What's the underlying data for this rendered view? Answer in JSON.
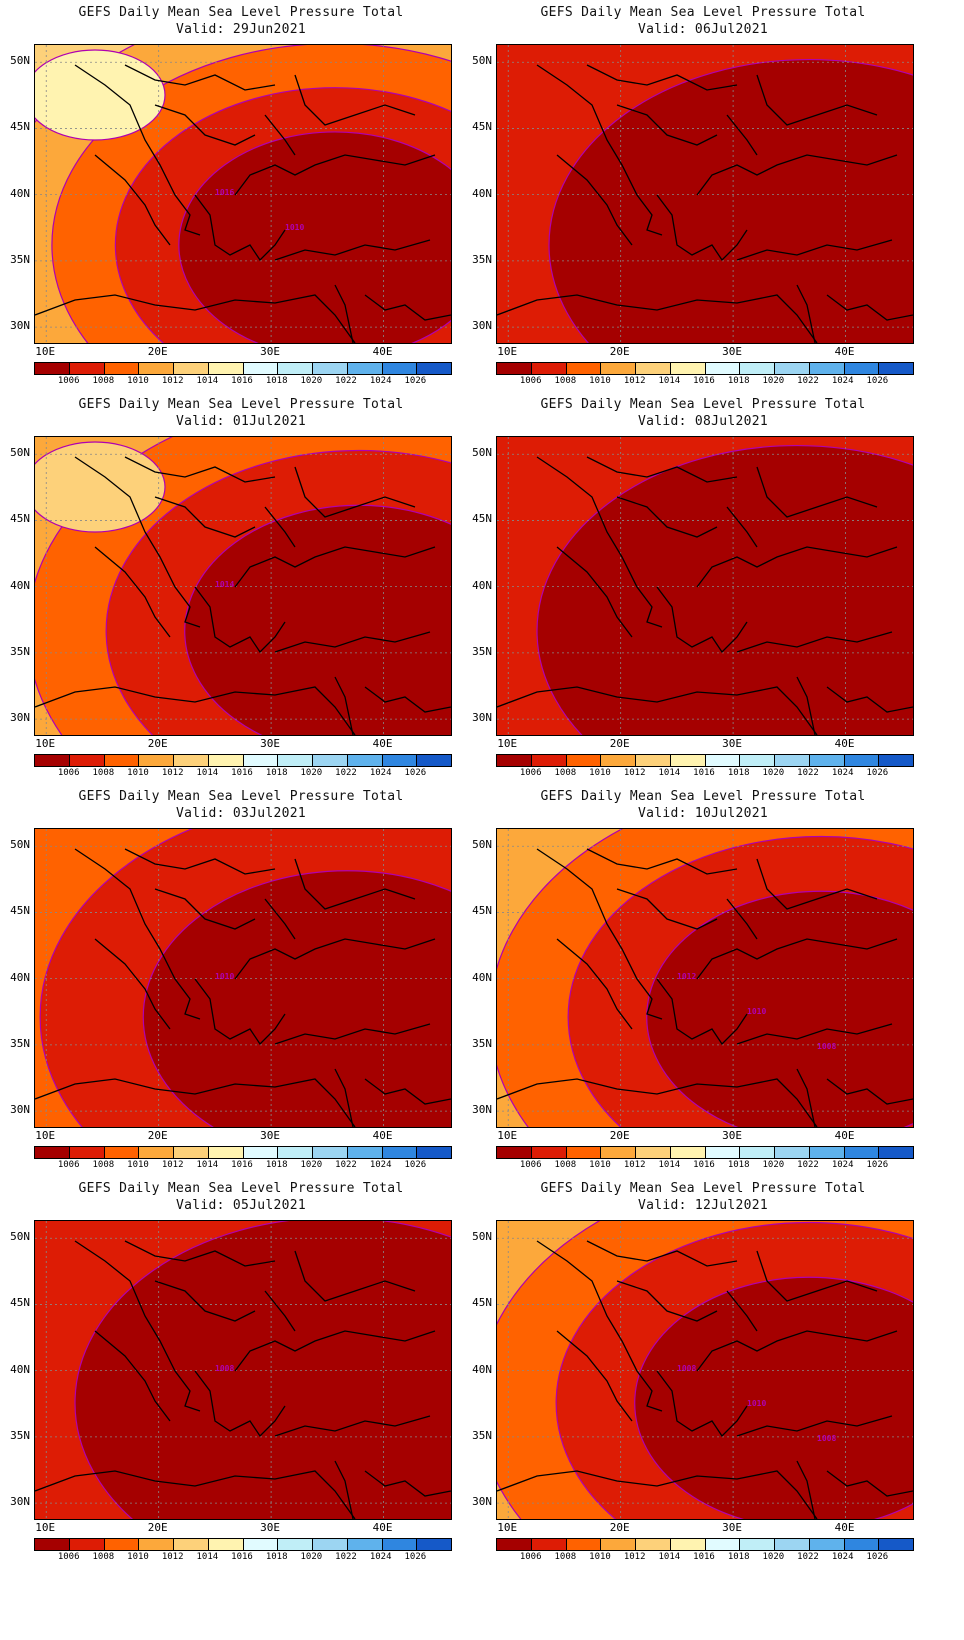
{
  "figure": {
    "title": "GEFS Daily Mean Sea Level Pressure Total",
    "lat_labels": [
      "50N",
      "45N",
      "40N",
      "35N",
      "30N"
    ],
    "lon_labels": [
      "10E",
      "20E",
      "30E",
      "40E"
    ],
    "colorbar_labels": [
      "1006",
      "1008",
      "1010",
      "1012",
      "1014",
      "1016",
      "1018",
      "1020",
      "1022",
      "1024",
      "1026"
    ],
    "colorbar_colors": [
      "#a50000",
      "#dd1c05",
      "#ff6200",
      "#fca83b",
      "#fdd17a",
      "#fff3b0",
      "#e1fbff",
      "#c0eef7",
      "#9cd5f2",
      "#5fb2ec",
      "#2f86e0",
      "#1559c8"
    ]
  },
  "panels": [
    {
      "valid": "Valid: 29Jun2021",
      "contour_labels": [
        "1016",
        "1010"
      ],
      "level": 1.6
    },
    {
      "valid": "Valid: 06Jul2021",
      "contour_labels": [],
      "level": 0.2
    },
    {
      "valid": "Valid: 01Jul2021",
      "contour_labels": [
        "1014"
      ],
      "level": 1.3
    },
    {
      "valid": "Valid: 08Jul2021",
      "contour_labels": [],
      "level": 0.3
    },
    {
      "valid": "Valid: 03Jul2021",
      "contour_labels": [
        "1010"
      ],
      "level": 0.9
    },
    {
      "valid": "Valid: 10Jul2021",
      "contour_labels": [
        "1012",
        "1010",
        "1008"
      ],
      "level": 1.0
    },
    {
      "valid": "Valid: 05Jul2021",
      "contour_labels": [
        "1008"
      ],
      "level": 0.4
    },
    {
      "valid": "Valid: 12Jul2021",
      "contour_labels": [
        "1008",
        "1010",
        "1008"
      ],
      "level": 1.2
    }
  ]
}
